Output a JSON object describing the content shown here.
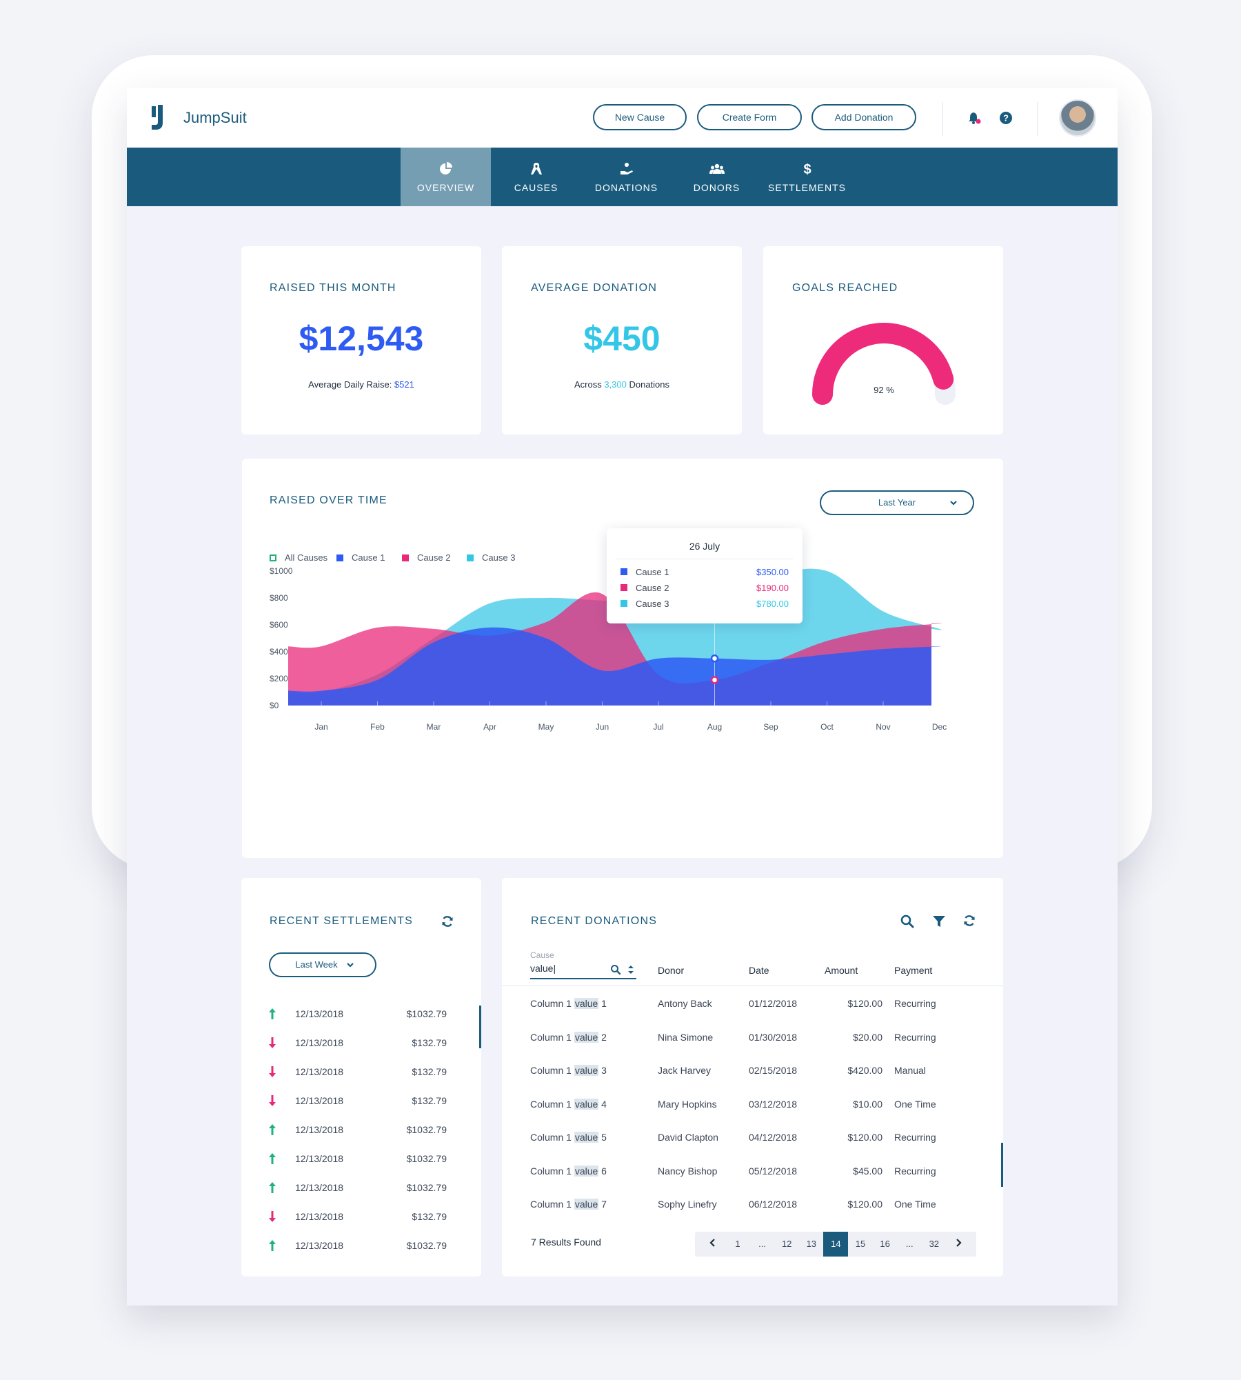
{
  "header": {
    "brand": "JumpSuit",
    "buttons": [
      "New Cause",
      "Create Form",
      "Add Donation"
    ],
    "icons": [
      "bell-icon",
      "help-icon"
    ],
    "colors": {
      "primary": "#1a5b7d",
      "accent": "#e8297a"
    }
  },
  "nav": {
    "items": [
      {
        "label": "OVERVIEW",
        "icon": "pie-chart-icon",
        "active": true
      },
      {
        "label": "CAUSES",
        "icon": "ribbon-icon",
        "active": false
      },
      {
        "label": "DONATIONS",
        "icon": "hand-coin-icon",
        "active": false
      },
      {
        "label": "DONORS",
        "icon": "group-icon",
        "active": false
      },
      {
        "label": "SETTLEMENTS",
        "icon": "dollar-icon",
        "active": false
      }
    ]
  },
  "stats": {
    "raised": {
      "title": "RAISED THIS MONTH",
      "value": "$12,543",
      "sub_label": "Average Daily Raise: ",
      "sub_value": "$521"
    },
    "average": {
      "title": "AVERAGE DONATION",
      "value": "$450",
      "sub_prefix": "Across ",
      "sub_value": "3,300",
      "sub_suffix": " Donations"
    },
    "goals": {
      "title": "GOALS REACHED",
      "percent": 92,
      "label": "92 %"
    }
  },
  "chart": {
    "title": "RAISED OVER TIME",
    "range_label": "Last Year",
    "legend": [
      {
        "name": "All Causes",
        "color": "#20b07a",
        "outline": true
      },
      {
        "name": "Cause 1",
        "color": "#2e5bf2"
      },
      {
        "name": "Cause 2",
        "color": "#e8297a"
      },
      {
        "name": "Cause 3",
        "color": "#34c6e6"
      }
    ],
    "tooltip": {
      "date": "26 July",
      "rows": [
        {
          "name": "Cause 1",
          "value": "$350.00",
          "color": "#2e5bf2"
        },
        {
          "name": "Cause 2",
          "value": "$190.00",
          "color": "#e8297a"
        },
        {
          "name": "Cause 3",
          "value": "$780.00",
          "color": "#34c6e6"
        }
      ]
    }
  },
  "chart_data": {
    "type": "area",
    "categories": [
      "Jan",
      "Feb",
      "Mar",
      "Apr",
      "May",
      "Jun",
      "Jul",
      "Aug",
      "Sep",
      "Oct",
      "Nov",
      "Dec"
    ],
    "y_ticks": [
      "$0",
      "$200",
      "$400",
      "$600",
      "$800",
      "$1000"
    ],
    "ylim": [
      0,
      1000
    ],
    "series": [
      {
        "name": "Cause 3",
        "values": [
          100,
          230,
          500,
          760,
          800,
          780,
          760,
          780,
          960,
          1000,
          700,
          570
        ]
      },
      {
        "name": "Cause 2",
        "values": [
          440,
          580,
          570,
          520,
          620,
          830,
          230,
          190,
          320,
          480,
          570,
          610
        ]
      },
      {
        "name": "Cause 1",
        "values": [
          110,
          190,
          470,
          580,
          500,
          260,
          350,
          350,
          340,
          380,
          420,
          440
        ]
      }
    ]
  },
  "settlements": {
    "title": "RECENT SETTLEMENTS",
    "range_label": "Last Week",
    "rows": [
      {
        "dir": "up",
        "date": "12/13/2018",
        "amount": "$1032.79"
      },
      {
        "dir": "down",
        "date": "12/13/2018",
        "amount": "$132.79"
      },
      {
        "dir": "down",
        "date": "12/13/2018",
        "amount": "$132.79"
      },
      {
        "dir": "down",
        "date": "12/13/2018",
        "amount": "$132.79"
      },
      {
        "dir": "up",
        "date": "12/13/2018",
        "amount": "$1032.79"
      },
      {
        "dir": "up",
        "date": "12/13/2018",
        "amount": "$1032.79"
      },
      {
        "dir": "up",
        "date": "12/13/2018",
        "amount": "$1032.79"
      },
      {
        "dir": "down",
        "date": "12/13/2018",
        "amount": "$132.79"
      },
      {
        "dir": "up",
        "date": "12/13/2018",
        "amount": "$1032.79"
      }
    ]
  },
  "donations": {
    "title": "RECENT DONATIONS",
    "filter_label": "Cause",
    "filter_value": "value|",
    "columns": [
      "Donor",
      "Date",
      "Amount",
      "Payment"
    ],
    "rows": [
      {
        "cause_prefix": "Column 1 ",
        "cause_hl": "value",
        "cause_suffix": " 1",
        "donor": "Antony Back",
        "date": "01/12/2018",
        "amount": "$120.00",
        "payment": "Recurring"
      },
      {
        "cause_prefix": "Column 1 ",
        "cause_hl": "value",
        "cause_suffix": " 2",
        "donor": "Nina Simone",
        "date": "01/30/2018",
        "amount": "$20.00",
        "payment": "Recurring"
      },
      {
        "cause_prefix": "Column 1 ",
        "cause_hl": "value",
        "cause_suffix": " 3",
        "donor": "Jack Harvey",
        "date": "02/15/2018",
        "amount": "$420.00",
        "payment": "Manual"
      },
      {
        "cause_prefix": "Column 1 ",
        "cause_hl": "value",
        "cause_suffix": " 4",
        "donor": "Mary Hopkins",
        "date": "03/12/2018",
        "amount": "$10.00",
        "payment": "One Time"
      },
      {
        "cause_prefix": "Column 1 ",
        "cause_hl": "value",
        "cause_suffix": " 5",
        "donor": "David Clapton",
        "date": "04/12/2018",
        "amount": "$120.00",
        "payment": "Recurring"
      },
      {
        "cause_prefix": "Column 1 ",
        "cause_hl": "value",
        "cause_suffix": " 6",
        "donor": "Nancy Bishop",
        "date": "05/12/2018",
        "amount": "$45.00",
        "payment": "Recurring"
      },
      {
        "cause_prefix": "Column 1 ",
        "cause_hl": "value",
        "cause_suffix": " 7",
        "donor": "Sophy Linefry",
        "date": "06/12/2018",
        "amount": "$120.00",
        "payment": "One Time"
      }
    ],
    "results": "7 Results Found",
    "pages": [
      "1",
      "...",
      "12",
      "13",
      "14",
      "15",
      "16",
      "...",
      "32"
    ],
    "active_page": "14"
  }
}
